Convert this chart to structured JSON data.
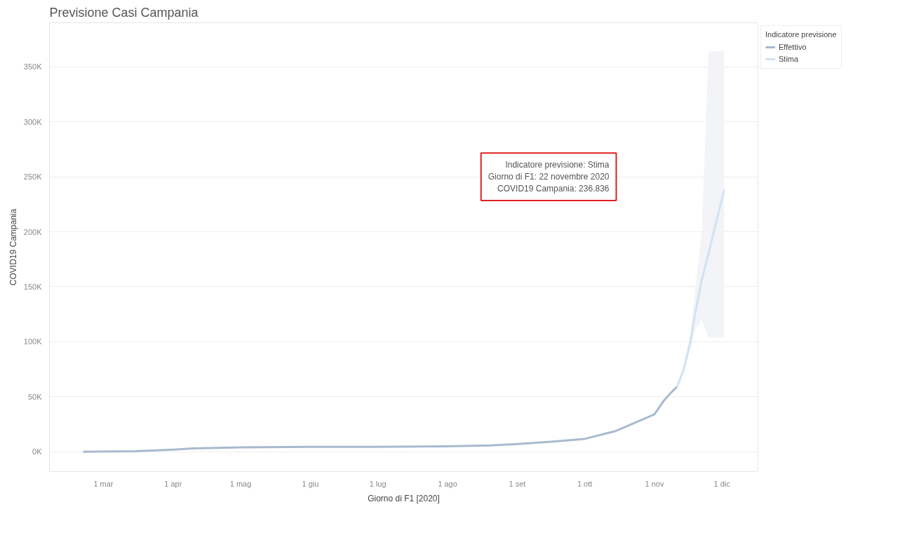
{
  "chart_data": {
    "type": "line",
    "title": "Previsione Casi Campania",
    "xlabel": "Giorno di F1 [2020]",
    "ylabel": "COVID19 Campania",
    "legend_title": "Indicatore previsione",
    "series": [
      {
        "name": "Effettivo",
        "color": "#a9b9cf",
        "x": [
          "2020-02-21",
          "2020-03-15",
          "2020-04-01",
          "2020-04-10",
          "2020-05-01",
          "2020-06-01",
          "2020-07-01",
          "2020-08-01",
          "2020-08-20",
          "2020-09-01",
          "2020-09-15",
          "2020-10-01",
          "2020-10-15",
          "2020-11-01",
          "2020-11-05",
          "2020-11-08",
          "2020-11-11"
        ],
        "values": [
          0,
          500,
          2000,
          3000,
          4000,
          4500,
          4500,
          5000,
          5800,
          7000,
          9000,
          11700,
          19000,
          34000,
          46000,
          53000,
          59000
        ]
      },
      {
        "name": "Stima",
        "color": "#d2e2f0",
        "x": [
          "2020-11-11",
          "2020-11-14",
          "2020-11-17",
          "2020-11-19",
          "2020-11-22",
          "2020-11-25",
          "2020-11-28",
          "2020-12-02"
        ],
        "values": [
          59000,
          75000,
          100000,
          125000,
          156000,
          180000,
          205000,
          238000
        ],
        "lower": [
          59000,
          72000,
          95000,
          110000,
          120000,
          104000,
          104000,
          104000
        ],
        "upper": [
          59000,
          78000,
          108000,
          145000,
          200000,
          364000,
          364000,
          364000
        ]
      }
    ],
    "xlim": [
      "2020-02-06",
      "2020-12-17"
    ],
    "xticks": [
      {
        "value": "2020-03-01",
        "label": "1 mar"
      },
      {
        "value": "2020-04-01",
        "label": "1 apr"
      },
      {
        "value": "2020-05-01",
        "label": "1 mag"
      },
      {
        "value": "2020-06-01",
        "label": "1 giu"
      },
      {
        "value": "2020-07-01",
        "label": "1 lug"
      },
      {
        "value": "2020-08-01",
        "label": "1 ago"
      },
      {
        "value": "2020-09-01",
        "label": "1 set"
      },
      {
        "value": "2020-10-01",
        "label": "1 ott"
      },
      {
        "value": "2020-11-01",
        "label": "1 nov"
      },
      {
        "value": "2020-12-01",
        "label": "1 dic"
      }
    ],
    "ylim": [
      -18000,
      390000
    ],
    "yticks": [
      {
        "value": 0,
        "label": "0K"
      },
      {
        "value": 50000,
        "label": "50K"
      },
      {
        "value": 100000,
        "label": "100K"
      },
      {
        "value": 150000,
        "label": "150K"
      },
      {
        "value": 200000,
        "label": "200K"
      },
      {
        "value": 250000,
        "label": "250K"
      },
      {
        "value": 300000,
        "label": "300K"
      },
      {
        "value": 350000,
        "label": "350K"
      }
    ],
    "grid": "y",
    "legend": "top right",
    "line_style": "solid",
    "annotations": [
      "Indicatore previsione: Stima\nGiorno di F1: 22 novembre 2020\nCOVID19 Campania: 236.836"
    ]
  }
}
